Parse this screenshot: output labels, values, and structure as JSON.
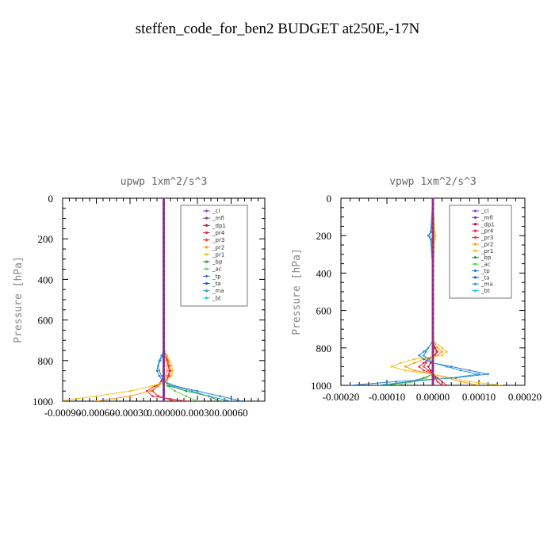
{
  "figure_title": "steffen_code_for_ben2  BUDGET at250E,-17N",
  "chart_data": [
    {
      "type": "line",
      "title": "upwp   1xm^2/s^3",
      "ylabel": "Pressure [hPa]",
      "xlabel": "",
      "ylim": [
        1000,
        0
      ],
      "xlim": [
        -0.0009,
        0.0009
      ],
      "xticks": [
        "-0.00090",
        "-0.00060",
        "-0.00030",
        "0.00000",
        "0.00030",
        "0.00060"
      ],
      "yticks": [
        "0",
        "200",
        "400",
        "600",
        "800",
        "1000"
      ],
      "grid": false,
      "legend_position": "top-right",
      "pressure": [
        0,
        200,
        400,
        600,
        700,
        750,
        775,
        800,
        825,
        850,
        875,
        900,
        925,
        950,
        975,
        1000
      ],
      "series": [
        {
          "name": "_cl",
          "color": "#8a4fc9",
          "values": [
            0,
            0,
            0,
            0,
            0,
            0,
            0,
            0,
            0,
            0,
            0,
            0,
            0,
            0,
            0,
            0
          ]
        },
        {
          "name": "_mfl",
          "color": "#9b2fae",
          "values": [
            0,
            0,
            0,
            0,
            0,
            0,
            0,
            0,
            0,
            0,
            0,
            0,
            0,
            0,
            0,
            0
          ]
        },
        {
          "name": "_dp1",
          "color": "#b0153a",
          "values": [
            0,
            0,
            0,
            0,
            0,
            0,
            0,
            0,
            0,
            0,
            0,
            -2e-05,
            -6e-05,
            -0.0001,
            -5e-05,
            0.0001
          ]
        },
        {
          "name": "_pr4",
          "color": "#e0284a",
          "values": [
            0,
            0,
            0,
            0,
            0,
            0,
            1e-05,
            3e-05,
            4e-05,
            5e-05,
            4e-05,
            2e-05,
            -8e-05,
            -0.00015,
            -0.0001,
            0.0002
          ]
        },
        {
          "name": "_pr3",
          "color": "#ff3030",
          "values": [
            0,
            0,
            0,
            0,
            0,
            0,
            2e-05,
            4e-05,
            5e-05,
            6e-05,
            5e-05,
            2e-05,
            -6e-05,
            -0.0001,
            -5e-05,
            0.0001
          ]
        },
        {
          "name": "_pr2",
          "color": "#ff9a1a",
          "values": [
            0,
            0,
            0,
            0,
            0,
            0,
            1e-05,
            2e-05,
            3e-05,
            3e-05,
            2e-05,
            1e-05,
            -5e-05,
            -0.00012,
            -0.0003,
            -0.0006
          ]
        },
        {
          "name": "_pr1",
          "color": "#f5c518",
          "values": [
            0,
            0,
            0,
            0,
            0,
            1e-05,
            3e-05,
            5e-05,
            7e-05,
            8e-05,
            7e-05,
            3e-05,
            -0.0001,
            -0.0003,
            -0.0006,
            -0.00095
          ]
        },
        {
          "name": "_bp",
          "color": "#1e9e3a",
          "values": [
            0,
            0,
            0,
            0,
            0,
            0,
            0,
            0,
            0,
            0,
            0,
            1e-05,
            5e-05,
            0.0002,
            0.0004,
            0.0005
          ]
        },
        {
          "name": "_ac",
          "color": "#6bd04a",
          "values": [
            0,
            0,
            0,
            0,
            0,
            0,
            0,
            0,
            0,
            0,
            0,
            1e-05,
            3e-05,
            0.0001,
            0.0002,
            0.0003
          ]
        },
        {
          "name": "_tp",
          "color": "#2f7fd8",
          "values": [
            0,
            0,
            0,
            0,
            0,
            0,
            -1e-05,
            -3e-05,
            -5e-05,
            -6e-05,
            -4e-05,
            -1e-05,
            0.0001,
            0.0003,
            0.0005,
            0.0007
          ]
        },
        {
          "name": "_ta",
          "color": "#3355cc",
          "values": [
            0,
            0,
            0,
            0,
            0,
            0,
            0,
            0,
            0,
            0,
            0,
            0,
            0,
            0,
            0,
            0
          ]
        },
        {
          "name": "_ma",
          "color": "#2aa0c8",
          "values": [
            0,
            0,
            0,
            0,
            0,
            0,
            -2e-05,
            -4e-05,
            -5e-05,
            -4e-05,
            -2e-05,
            0,
            8e-05,
            0.00025,
            0.0004,
            0.0006
          ]
        },
        {
          "name": "_bt",
          "color": "#1fd0e0",
          "values": [
            0,
            0,
            0,
            0,
            0,
            0,
            0,
            0,
            0,
            0,
            0,
            0,
            0,
            0,
            0,
            0
          ]
        }
      ]
    },
    {
      "type": "line",
      "title": "vpwp   1xm^2/s^3",
      "ylabel": "Pressure [hPa]",
      "xlabel": "",
      "ylim": [
        1000,
        0
      ],
      "xlim": [
        -0.0002,
        0.0002
      ],
      "xticks": [
        "-0.00020",
        "-0.00010",
        "0.00000",
        "0.00010",
        "0.00020"
      ],
      "yticks": [
        "0",
        "200",
        "400",
        "600",
        "800",
        "1000"
      ],
      "grid": false,
      "legend_position": "top-right",
      "pressure": [
        0,
        180,
        200,
        220,
        400,
        600,
        760,
        800,
        820,
        840,
        860,
        880,
        900,
        920,
        940,
        960,
        980,
        1000
      ],
      "series": [
        {
          "name": "_cl",
          "color": "#8a4fc9",
          "values": [
            0,
            0,
            0,
            0,
            0,
            0,
            0,
            0,
            0,
            0,
            0,
            0,
            0,
            0,
            0,
            0,
            0,
            0
          ]
        },
        {
          "name": "_mfl",
          "color": "#9b2fae",
          "values": [
            0,
            0,
            0,
            0,
            0,
            0,
            0,
            0,
            0,
            0,
            0,
            0,
            0,
            0,
            0,
            0,
            0,
            0
          ]
        },
        {
          "name": "_dp1",
          "color": "#b0153a",
          "values": [
            0,
            0,
            0,
            0,
            0,
            0,
            0,
            0,
            0,
            0,
            0,
            -5e-06,
            -1e-05,
            -5e-06,
            0,
            5e-06,
            1e-05,
            2e-05
          ]
        },
        {
          "name": "_pr4",
          "color": "#e0284a",
          "values": [
            0,
            0,
            0,
            0,
            0,
            0,
            0,
            5e-06,
            1e-05,
            5e-06,
            -1e-05,
            -2e-05,
            -3e-05,
            -2e-05,
            0,
            1e-05,
            2e-05,
            3e-05
          ]
        },
        {
          "name": "_pr3",
          "color": "#ff3030",
          "values": [
            0,
            0,
            0,
            0,
            0,
            0,
            0,
            3e-06,
            8e-06,
            3e-06,
            -8e-06,
            -1.5e-05,
            -2e-05,
            -1e-05,
            0,
            5e-06,
            1e-05,
            2e-05
          ]
        },
        {
          "name": "_pr2",
          "color": "#ff9a1a",
          "values": [
            0,
            3e-06,
            5e-06,
            3e-06,
            0,
            0,
            0,
            1e-05,
            2e-05,
            1e-05,
            -2e-05,
            -4e-05,
            -6e-05,
            -4e-05,
            0,
            3e-05,
            6e-05,
            0.0001
          ]
        },
        {
          "name": "_pr1",
          "color": "#f5c518",
          "values": [
            0,
            4e-06,
            6e-06,
            4e-06,
            0,
            0,
            0,
            2e-05,
            3e-05,
            2e-05,
            -4e-05,
            -7e-05,
            -9e-05,
            -6e-05,
            0,
            4e-05,
            8e-05,
            0.00015
          ]
        },
        {
          "name": "_bp",
          "color": "#1e9e3a",
          "values": [
            0,
            0,
            0,
            0,
            0,
            0,
            0,
            0,
            0,
            0,
            0,
            0,
            0,
            0,
            0,
            -2e-05,
            -5e-05,
            -0.0001
          ]
        },
        {
          "name": "_ac",
          "color": "#6bd04a",
          "values": [
            0,
            0,
            0,
            0,
            0,
            0,
            0,
            0,
            0,
            0,
            0,
            0,
            0,
            0,
            0,
            -1.5e-05,
            -4e-05,
            -8e-05
          ]
        },
        {
          "name": "_tp",
          "color": "#2f7fd8",
          "values": [
            0,
            -5e-06,
            -1e-05,
            -5e-06,
            0,
            0,
            0,
            -1e-05,
            -2e-05,
            -3e-05,
            -2e-05,
            0,
            4e-05,
            8e-05,
            0.00012,
            5e-05,
            -8e-05,
            -0.00018
          ]
        },
        {
          "name": "_ta",
          "color": "#3355cc",
          "values": [
            0,
            0,
            0,
            0,
            0,
            0,
            0,
            0,
            0,
            0,
            0,
            0,
            0,
            0,
            0,
            0,
            0,
            0
          ]
        },
        {
          "name": "_ma",
          "color": "#2aa0c8",
          "values": [
            0,
            -4e-06,
            -8e-06,
            -4e-06,
            0,
            0,
            0,
            -1e-05,
            -1.5e-05,
            -2e-05,
            -1e-05,
            0,
            3e-05,
            6e-05,
            0.0001,
            4e-05,
            -5e-05,
            -0.00012
          ]
        },
        {
          "name": "_bt",
          "color": "#1fd0e0",
          "values": [
            0,
            0,
            0,
            0,
            0,
            0,
            0,
            0,
            0,
            0,
            0,
            0,
            0,
            0,
            0,
            0,
            0,
            0
          ]
        }
      ]
    }
  ]
}
